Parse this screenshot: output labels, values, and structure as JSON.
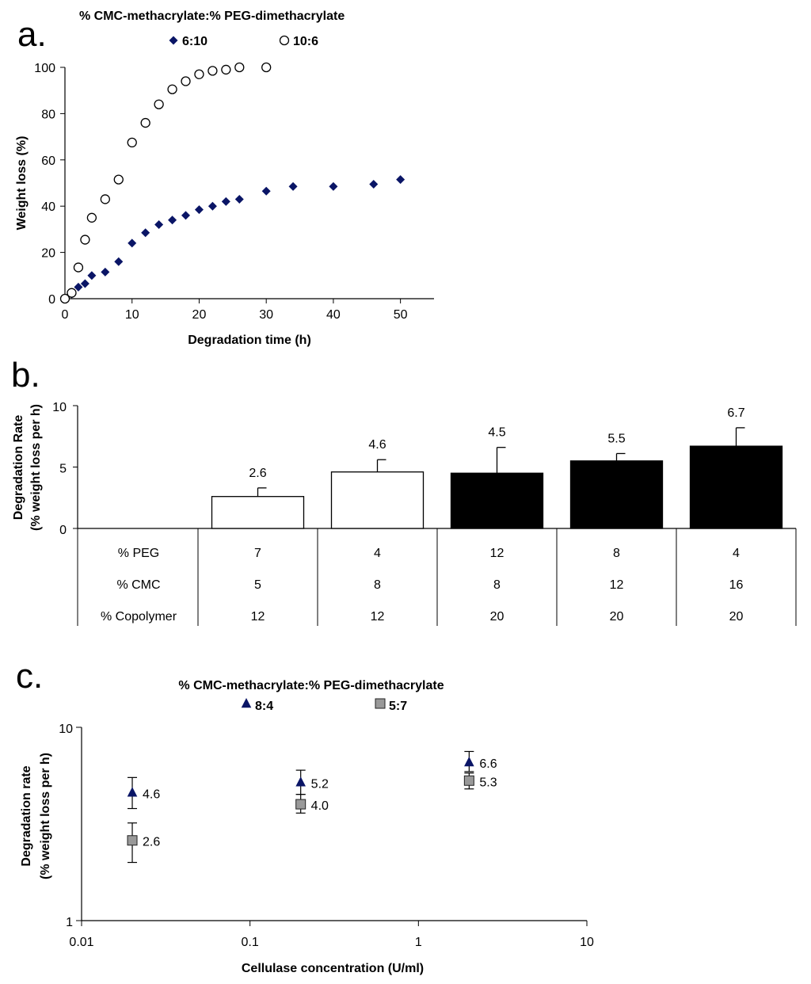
{
  "chart_data": [
    {
      "panel_label": "a.",
      "type": "scatter",
      "title": "% CMC-methacrylate:% PEG-dimethacrylate",
      "xlabel": "Degradation time (h)",
      "ylabel": "Weight loss (%)",
      "xlim": [
        0,
        55
      ],
      "ylim": [
        0,
        100
      ],
      "x_ticks": [
        "0",
        "10",
        "20",
        "30",
        "40",
        "50"
      ],
      "y_ticks": [
        "0",
        "20",
        "40",
        "60",
        "80",
        "100"
      ],
      "legend_position": "top",
      "series": [
        {
          "name": "6:10",
          "marker": "diamond",
          "color": "#0a1566",
          "x": [
            0,
            1,
            2,
            3,
            4,
            6,
            8,
            10,
            12,
            14,
            16,
            18,
            20,
            22,
            24,
            26,
            30,
            34,
            40,
            46,
            50
          ],
          "y": [
            0,
            2,
            5,
            6.5,
            10,
            11.5,
            16,
            24,
            28.5,
            32,
            34,
            36,
            38.5,
            40,
            42,
            43,
            46.5,
            48.5,
            48.5,
            49.5,
            51.5
          ]
        },
        {
          "name": "10:6",
          "marker": "open-circle",
          "color": "#000000",
          "x": [
            0,
            1,
            2,
            3,
            4,
            6,
            8,
            10,
            12,
            14,
            16,
            18,
            20,
            22,
            24,
            26,
            30
          ],
          "y": [
            0,
            2.5,
            13.5,
            25.5,
            35,
            43,
            51.5,
            67.5,
            76,
            84,
            90.5,
            94,
            97,
            98.5,
            99,
            100,
            100
          ]
        }
      ]
    },
    {
      "panel_label": "b.",
      "type": "bar",
      "ylabel": "Degradation Rate (% weight loss per h)",
      "ylabel_lines": [
        "Degradation Rate",
        "(% weight loss per h)"
      ],
      "ylim": [
        0,
        10
      ],
      "y_ticks": [
        "0",
        "5",
        "10"
      ],
      "values": [
        2.6,
        4.6,
        4.5,
        5.5,
        6.7
      ],
      "value_labels": [
        "2.6",
        "4.6",
        "4.5",
        "5.5",
        "6.7"
      ],
      "error_upper": [
        3.3,
        5.6,
        6.6,
        6.1,
        8.2
      ],
      "bar_fills": [
        "#ffffff",
        "#ffffff",
        "#000000",
        "#000000",
        "#000000"
      ],
      "table": {
        "row_labels": [
          "% PEG",
          "% CMC",
          "% Copolymer"
        ],
        "rows": [
          [
            "7",
            "4",
            "12",
            "8",
            "4"
          ],
          [
            "5",
            "8",
            "8",
            "12",
            "16"
          ],
          [
            "12",
            "12",
            "20",
            "20",
            "20"
          ]
        ]
      }
    },
    {
      "panel_label": "c.",
      "type": "scatter",
      "title": "% CMC-methacrylate:% PEG-dimethacrylate",
      "xlabel": "Cellulase concentration (U/ml)",
      "ylabel": "Degradation rate (% weight loss per h)",
      "ylabel_lines": [
        "Degradation rate",
        "(% weight loss per h)"
      ],
      "x_scale": "log",
      "y_scale": "log",
      "xlim": [
        0.01,
        10
      ],
      "ylim": [
        1,
        10
      ],
      "x_ticks": [
        "0.01",
        "0.1",
        "1",
        "10"
      ],
      "y_ticks": [
        "1",
        "10"
      ],
      "legend_position": "top",
      "series": [
        {
          "name": "8:4",
          "marker": "triangle",
          "color": "#0a1566",
          "label_color": "#1a2a8a",
          "x": [
            0.02,
            0.2,
            2
          ],
          "y": [
            4.6,
            5.2,
            6.6
          ],
          "err_low": [
            3.8,
            4.5,
            5.9
          ],
          "err_high": [
            5.5,
            6.0,
            7.5
          ],
          "labels": [
            "4.6",
            "5.2",
            "6.6"
          ]
        },
        {
          "name": "5:7",
          "marker": "square",
          "color": "#999999",
          "label_color": "#000000",
          "x": [
            0.02,
            0.2,
            2
          ],
          "y": [
            2.6,
            4.0,
            5.3
          ],
          "err_low": [
            2.0,
            3.6,
            4.8
          ],
          "err_high": [
            3.2,
            4.5,
            5.8
          ],
          "labels": [
            "2.6",
            "4.0",
            "5.3"
          ]
        }
      ]
    }
  ]
}
